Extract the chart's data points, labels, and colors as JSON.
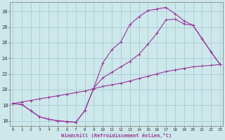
{
  "bg_color": "#cce8ea",
  "grid_color": "#aaccd4",
  "line_color": "#993399",
  "spine_color": "#888888",
  "xlim": [
    -0.3,
    23.3
  ],
  "ylim": [
    15.3,
    31.2
  ],
  "xticks": [
    0,
    1,
    2,
    3,
    4,
    5,
    6,
    7,
    8,
    9,
    10,
    11,
    12,
    13,
    14,
    15,
    16,
    17,
    18,
    19,
    20,
    21,
    22,
    23
  ],
  "yticks": [
    16,
    18,
    20,
    22,
    24,
    26,
    28,
    30
  ],
  "xlabel": "Windchill (Refroidissement éolien,°C)",
  "curve1_x": [
    0,
    1,
    2,
    3,
    4,
    5,
    6,
    7,
    8,
    9,
    10,
    11,
    12,
    13,
    14,
    15,
    16,
    17,
    18,
    19,
    20,
    21,
    22,
    23
  ],
  "curve1_y": [
    18.2,
    18.1,
    17.3,
    16.5,
    16.2,
    16.0,
    15.9,
    15.8,
    17.3,
    20.2,
    23.4,
    25.1,
    26.1,
    28.3,
    29.3,
    30.1,
    30.3,
    30.5,
    29.7,
    28.8,
    28.2,
    26.5,
    24.8,
    23.2
  ],
  "curve2_x": [
    0,
    1,
    2,
    3,
    4,
    5,
    6,
    7,
    8,
    9,
    10,
    11,
    12,
    13,
    14,
    15,
    16,
    17,
    18,
    19,
    20,
    21,
    22,
    23
  ],
  "curve2_y": [
    18.2,
    18.1,
    17.3,
    16.5,
    16.2,
    16.0,
    15.9,
    15.8,
    17.3,
    20.2,
    21.5,
    22.2,
    22.9,
    23.6,
    24.5,
    25.8,
    27.2,
    28.9,
    29.0,
    28.4,
    28.2,
    26.5,
    24.8,
    23.2
  ],
  "curve3_x": [
    0,
    1,
    2,
    3,
    4,
    5,
    6,
    7,
    8,
    9,
    10,
    11,
    12,
    13,
    14,
    15,
    16,
    17,
    18,
    19,
    20,
    21,
    22,
    23
  ],
  "curve3_y": [
    18.2,
    18.4,
    18.6,
    18.8,
    19.0,
    19.2,
    19.4,
    19.6,
    19.8,
    20.1,
    20.4,
    20.6,
    20.8,
    21.1,
    21.4,
    21.7,
    22.0,
    22.3,
    22.5,
    22.7,
    22.9,
    23.0,
    23.1,
    23.2
  ]
}
